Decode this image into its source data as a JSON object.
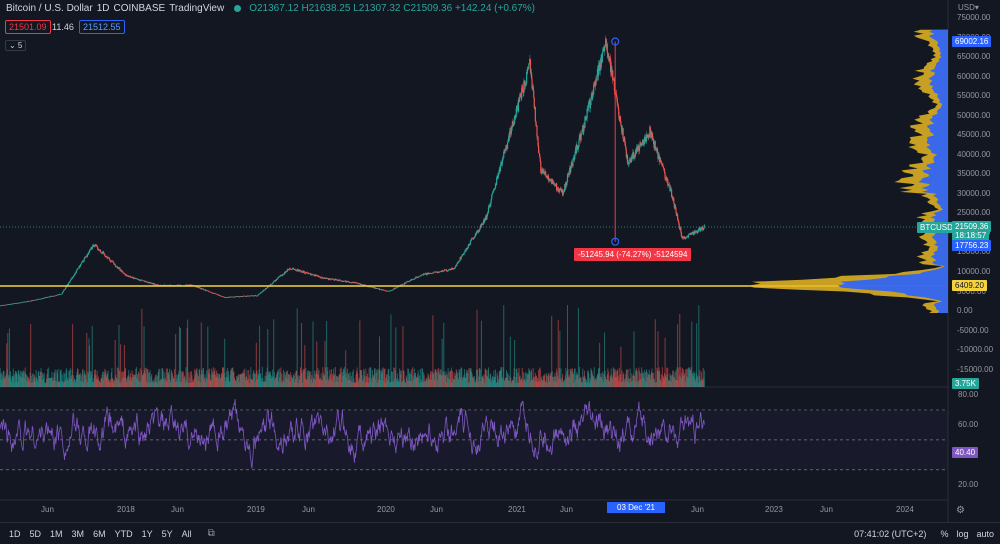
{
  "header": {
    "symbol": "Bitcoin / U.S. Dollar",
    "interval": "1D",
    "exchange": "COINBASE",
    "source": "TradingView",
    "ohlc": "O21367.12  H21638.25  L21307.32  C21509.36  +142.24 (+0.67%)",
    "bid": "21501.09",
    "spread": "11.46",
    "ask": "21512.55",
    "indicator_toggle": "⌄ 5"
  },
  "axis": {
    "currency": "USD▾",
    "price_ticks": [
      "75000.00",
      "70000.00",
      "65000.00",
      "60000.00",
      "55000.00",
      "50000.00",
      "45000.00",
      "40000.00",
      "35000.00",
      "30000.00",
      "25000.00",
      "20000.00",
      "15000.00",
      "10000.00",
      "5000.00",
      "0.00",
      "-5000.00",
      "-10000.00",
      "-15000.00"
    ],
    "rsi_ticks": [
      "80.00",
      "60.00",
      "40.00",
      "20.00"
    ]
  },
  "tags": {
    "high": "69002.16",
    "symbol_tag": "BTCUSD",
    "last": "21509.36",
    "countdown": "18:18:57",
    "low_tag": "17756.23",
    "hline": "6409.20",
    "volume": "3.75K",
    "rsi": "40.40"
  },
  "ruler": {
    "label": "-51245.94 (-74.27%) -5124594"
  },
  "time_axis": {
    "labels": [
      "Jun",
      "2018",
      "Jun",
      "2019",
      "Jun",
      "2020",
      "Jun",
      "2021",
      "Jun",
      "03 Dec '21",
      "Jun",
      "2023",
      "Jun",
      "2024"
    ]
  },
  "bottom": {
    "ranges": [
      "1D",
      "5D",
      "1M",
      "3M",
      "6M",
      "YTD",
      "1Y",
      "5Y",
      "All"
    ],
    "clock": "07:41:02 (UTC+2)",
    "pct": "%",
    "log": "log",
    "auto": "auto"
  },
  "colors": {
    "up": "#26a69a",
    "down": "#ef5350",
    "rsi": "#7e57c2",
    "vp_up": "#e8b923",
    "vp_down": "#2962ff",
    "hline": "#f5d33f"
  },
  "chart_data": [
    {
      "type": "line",
      "title": "Bitcoin / U.S. Dollar, 1D, COINBASE",
      "x": [
        "2017-03",
        "2017-06",
        "2017-09",
        "2017-12",
        "2018-03",
        "2018-06",
        "2018-09",
        "2018-12",
        "2019-03",
        "2019-06",
        "2019-09",
        "2019-12",
        "2020-03",
        "2020-06",
        "2020-09",
        "2020-12",
        "2021-01",
        "2021-04",
        "2021-05",
        "2021-07",
        "2021-09",
        "2021-11",
        "2022-01",
        "2022-03",
        "2022-05",
        "2022-06",
        "2022-08"
      ],
      "series": [
        {
          "values": [
            1200,
            2500,
            4300,
            17000,
            9000,
            6500,
            6600,
            3500,
            4000,
            11000,
            8500,
            7200,
            5000,
            9200,
            10800,
            24000,
            34000,
            63000,
            36000,
            30000,
            48000,
            69000,
            38000,
            46000,
            30000,
            18500,
            21509
          ]
        }
      ],
      "ylim": [
        -17000,
        75000
      ]
    },
    {
      "type": "line",
      "title": "RSI",
      "current_value": 40.4,
      "bands": [
        30,
        50,
        70
      ],
      "ylim": [
        10,
        85
      ]
    }
  ]
}
